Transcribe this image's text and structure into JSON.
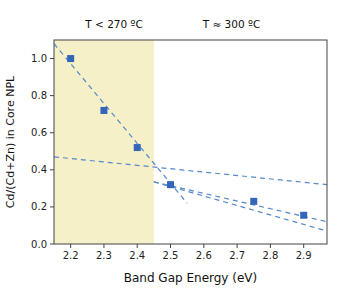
{
  "chart_data": {
    "type": "scatter",
    "x_label": "Band Gap Energy (eV)",
    "y_label": "Cd/(Cd+Zn) in Core NPL",
    "xlim": [
      2.15,
      2.97
    ],
    "ylim": [
      0.0,
      1.1
    ],
    "xticks": [
      2.2,
      2.3,
      2.4,
      2.5,
      2.6,
      2.7,
      2.8,
      2.9
    ],
    "yticks": [
      {
        "value": 0.0,
        "label": "0.0"
      },
      0.2,
      0.4,
      0.6,
      0.8,
      {
        "value": 1.0,
        "label": "1.0"
      }
    ],
    "grid": false,
    "annotations": [
      {
        "text": "T < 270 ºC"
      },
      {
        "text": "T ≈ 300 ºC"
      }
    ],
    "series": [
      {
        "type": "span",
        "color": "#f5f0c8",
        "x": [
          2.15,
          2.45
        ]
      },
      {
        "type": "line",
        "color": "#5588cc",
        "line_style": "dashed",
        "x": [
          2.15,
          2.55
        ],
        "values": [
          1.08,
          0.22
        ]
      },
      {
        "type": "line",
        "color": "#5588cc",
        "line_style": "dashed",
        "x": [
          2.15,
          2.97
        ],
        "values": [
          0.47,
          0.32
        ]
      },
      {
        "type": "line",
        "color": "#5588cc",
        "line_style": "dashed",
        "x": [
          2.45,
          2.97
        ],
        "values": [
          0.335,
          0.07
        ]
      },
      {
        "type": "line",
        "color": "#5588cc",
        "line_style": "dashed",
        "x": [
          2.45,
          2.97
        ],
        "values": [
          0.335,
          0.12
        ]
      },
      {
        "type": "scatter",
        "color": "#3366bb",
        "marker": "square",
        "x": [
          2.2,
          2.3,
          2.4,
          2.5,
          2.75,
          2.9
        ],
        "values": [
          1.0,
          0.72,
          0.52,
          0.32,
          0.23,
          0.155
        ]
      }
    ]
  }
}
